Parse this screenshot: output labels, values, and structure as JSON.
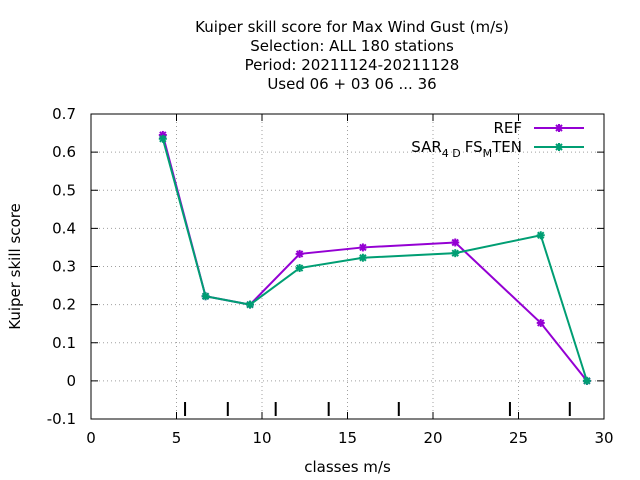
{
  "chart_data": {
    "type": "line",
    "title_lines": [
      "Kuiper skill score  for Max Wind Gust (m/s)",
      "Selection: ALL    180 stations",
      "Period: 20211124-20211128",
      "Used  06 + 03 06 ... 36"
    ],
    "xlabel": "classes m/s",
    "ylabel": "Kuiper skill score",
    "xlim": [
      0,
      30
    ],
    "ylim": [
      -0.1,
      0.7
    ],
    "xticks": [
      0,
      5,
      10,
      15,
      20,
      25,
      30
    ],
    "yticks": [
      -0.1,
      0,
      0.1,
      0.2,
      0.3,
      0.4,
      0.5,
      0.6,
      0.7
    ],
    "xtick_labels": [
      "0",
      "5",
      "10",
      "15",
      "20",
      "25",
      "30"
    ],
    "ytick_labels": [
      "-0.1",
      "0",
      "0.1",
      "0.2",
      "0.3",
      "0.4",
      "0.5",
      "0.6",
      "0.7"
    ],
    "grid": true,
    "legend_position": "top-right",
    "class_markers": [
      5.5,
      8.0,
      10.8,
      13.9,
      18.0,
      24.5,
      28.0
    ],
    "series": [
      {
        "name": "REF",
        "color": "#9400d3",
        "x": [
          4.2,
          6.7,
          9.3,
          12.2,
          15.9,
          21.3,
          26.3,
          29.0
        ],
        "y": [
          0.645,
          0.222,
          0.2,
          0.333,
          0.35,
          0.363,
          0.152,
          0.0
        ]
      },
      {
        "name": "SAR_4D FS_M TEN",
        "color": "#009e73",
        "x": [
          4.2,
          6.7,
          9.3,
          12.2,
          15.9,
          21.3,
          26.3,
          29.0
        ],
        "y": [
          0.635,
          0.222,
          0.2,
          0.296,
          0.323,
          0.335,
          0.382,
          0.0
        ]
      }
    ]
  },
  "legend_text": {
    "ref": "REF",
    "sar_main": "SAR",
    "sar_sub1": "4 D",
    "sar_fs": "FS",
    "sar_sub2": "M",
    "sar_ten": "TEN"
  }
}
